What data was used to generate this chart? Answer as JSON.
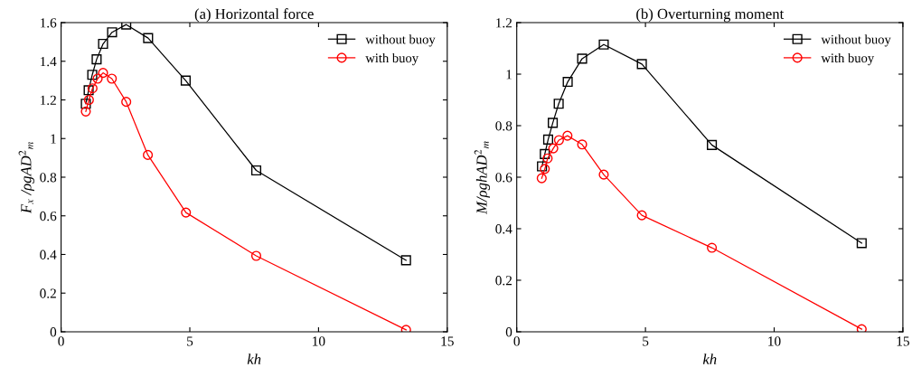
{
  "chart_data": [
    {
      "type": "line",
      "title": "(a) Horizontal force",
      "xlabel": "kh",
      "ylabel": "F$_{x}$ /ρgAD$^{2}$$_{m}$",
      "xlim": [
        0,
        15
      ],
      "xticks": [
        0,
        5,
        10,
        15
      ],
      "ylim": [
        0,
        1.6
      ],
      "yticks": [
        0,
        0.2,
        0.4,
        0.6,
        0.8,
        1,
        1.2,
        1.4,
        1.6
      ],
      "grid": false,
      "legend": "top right",
      "series": [
        {
          "name": "without buoy",
          "color": "#000000",
          "marker": "square",
          "x": [
            0.96,
            1.07,
            1.21,
            1.38,
            1.63,
            1.98,
            2.53,
            3.38,
            4.84,
            7.58,
            13.4
          ],
          "values": [
            1.18,
            1.25,
            1.33,
            1.41,
            1.49,
            1.55,
            1.59,
            1.52,
            1.3,
            0.835,
            0.37
          ]
        },
        {
          "name": "with buoy",
          "color": "#ff0000",
          "marker": "circle",
          "x": [
            0.96,
            1.08,
            1.22,
            1.42,
            1.63,
            1.97,
            2.53,
            3.37,
            4.85,
            7.58,
            13.4
          ],
          "values": [
            1.14,
            1.2,
            1.26,
            1.31,
            1.34,
            1.31,
            1.19,
            0.915,
            0.617,
            0.393,
            0.01
          ]
        }
      ]
    },
    {
      "type": "line",
      "title": "(b) Overturning moment",
      "xlabel": "kh",
      "ylabel": "M/ρghAD$^{2}$$_{m}$",
      "xlim": [
        0,
        15
      ],
      "xticks": [
        0,
        5,
        10,
        15
      ],
      "ylim": [
        0,
        1.2
      ],
      "yticks": [
        0,
        0.2,
        0.4,
        0.6,
        0.8,
        1,
        1.2
      ],
      "grid": false,
      "legend": "top right",
      "series": [
        {
          "name": "without buoy",
          "color": "#000000",
          "marker": "square",
          "x": [
            0.98,
            1.09,
            1.22,
            1.4,
            1.63,
            1.98,
            2.54,
            3.38,
            4.86,
            7.58,
            13.4
          ],
          "values": [
            0.642,
            0.69,
            0.746,
            0.811,
            0.885,
            0.97,
            1.06,
            1.115,
            1.039,
            0.725,
            0.344
          ]
        },
        {
          "name": "with buoy",
          "color": "#ff0000",
          "marker": "circle",
          "x": [
            0.97,
            1.09,
            1.2,
            1.42,
            1.64,
            1.97,
            2.54,
            3.38,
            4.86,
            7.58,
            13.4
          ],
          "values": [
            0.596,
            0.632,
            0.673,
            0.712,
            0.744,
            0.761,
            0.727,
            0.61,
            0.452,
            0.326,
            0.01
          ]
        }
      ]
    }
  ]
}
